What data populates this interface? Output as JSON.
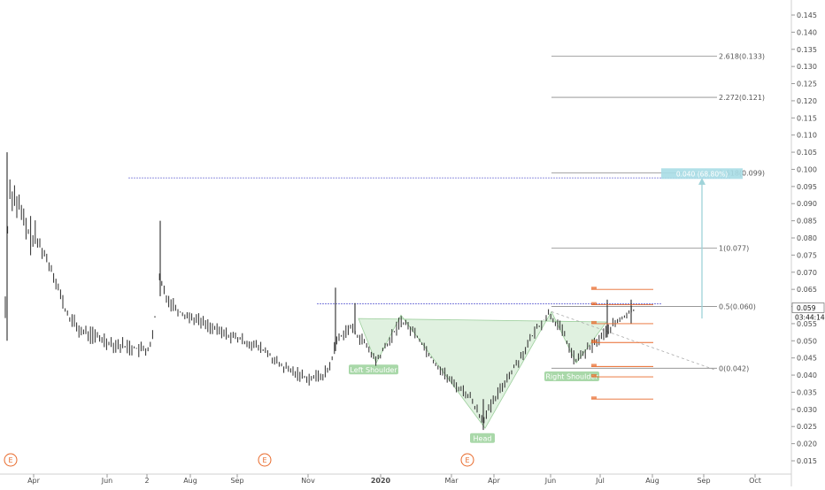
{
  "chart_data": {
    "type": "candlestick",
    "price_axis": {
      "ticks": [
        "0.145",
        "0.140",
        "0.135",
        "0.130",
        "0.125",
        "0.120",
        "0.115",
        "0.110",
        "0.105",
        "0.100",
        "0.095",
        "0.090",
        "0.085",
        "0.080",
        "0.075",
        "0.070",
        "0.065",
        "0.060",
        "0.055",
        "0.050",
        "0.045",
        "0.040",
        "0.035",
        "0.030",
        "0.025",
        "0.020",
        "0.015"
      ],
      "range": [
        0.012,
        0.148
      ]
    },
    "time_axis": {
      "ticks": [
        "Apr",
        "Jun",
        "2",
        "Aug",
        "Sep",
        "Nov",
        "2020",
        "Mar",
        "Apr",
        "Jun",
        "Jul",
        "Aug",
        "Sep",
        "Oct"
      ]
    },
    "last_price": "0.059",
    "countdown": "03:44:14",
    "fib_levels": [
      {
        "label": "2.618(0.133)",
        "value": 0.133
      },
      {
        "label": "2.272(0.121)",
        "value": 0.121
      },
      {
        "label": "1.618(0.099)",
        "value": 0.099
      },
      {
        "label": "1(0.077)",
        "value": 0.077
      },
      {
        "label": "0.5(0.060)",
        "value": 0.06
      },
      {
        "label": "0(0.042)",
        "value": 0.042
      }
    ],
    "target_label": "0.040 (68.80%)",
    "pattern_labels": [
      "Left Shoulder",
      "Head",
      "Right Shoulder"
    ],
    "horizontal_lines": [
      0.0975,
      0.0608
    ],
    "earnings_marker": "E",
    "colors": {
      "bar": "#2b2b2b",
      "hline": "#6b6bd6",
      "pattern_fill": "#cfe9cf",
      "pattern_label": "#a9d8a9",
      "fib": "#8a8a8a",
      "target_box": "#a8dde6",
      "orange": "#e8692a"
    }
  }
}
